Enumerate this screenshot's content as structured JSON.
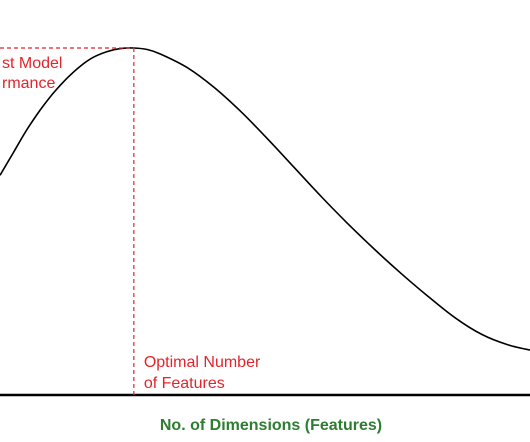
{
  "chart_data": {
    "type": "line",
    "title": "",
    "xlabel": "No. of Dimensions (Features)",
    "ylabel": "",
    "series": [
      {
        "x": [
          0,
          0.25,
          0.5,
          0.75,
          1.0,
          1.25,
          1.5,
          1.75,
          2.0,
          2.25,
          2.5,
          2.75,
          3.0,
          3.5,
          4.0,
          4.5,
          5.0,
          5.5,
          6.0,
          6.5,
          7.0,
          7.5,
          8.0,
          8.5,
          9.0,
          9.5,
          10.0
        ],
        "y": [
          0.58,
          0.655,
          0.73,
          0.795,
          0.852,
          0.9,
          0.94,
          0.97,
          0.988,
          0.998,
          1.0,
          0.995,
          0.98,
          0.935,
          0.87,
          0.79,
          0.7,
          0.605,
          0.51,
          0.42,
          0.335,
          0.255,
          0.18,
          0.11,
          0.055,
          0.02,
          0.0
        ]
      }
    ],
    "xlim": [
      0,
      10
    ],
    "ylim": [
      -0.3,
      1.0
    ],
    "optimum": {
      "x": 2.5,
      "y": 1.0
    },
    "annotations": {
      "peak_lines": [
        "st Model",
        "rmance"
      ],
      "optimal_lines": [
        "Optimal Number",
        "of Features"
      ]
    },
    "grid": false,
    "colors": {
      "curve": "#000000",
      "axis": "#000000",
      "annotation": "#e3242b",
      "xlabel": "#2e7d32"
    }
  }
}
